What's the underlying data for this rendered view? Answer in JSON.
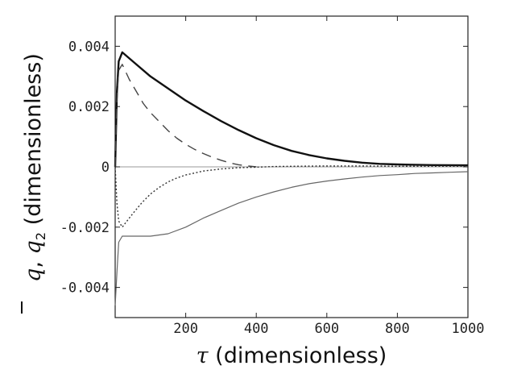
{
  "chart_data": {
    "type": "line",
    "xlabel": {
      "symbol": "τ",
      "text": " (dimensionless)"
    },
    "ylabel": {
      "sym1": "q",
      "sep": ",  ",
      "sym2": "q",
      "sub2": "2",
      "text": " (dimensionless)"
    },
    "xlim": [
      0,
      1000
    ],
    "ylim": [
      -0.005,
      0.005
    ],
    "x_ticks": [
      {
        "value": 200,
        "label": "200"
      },
      {
        "value": 400,
        "label": "400"
      },
      {
        "value": 600,
        "label": "600"
      },
      {
        "value": 800,
        "label": "800"
      },
      {
        "value": 1000,
        "label": "1000"
      }
    ],
    "y_ticks": [
      {
        "value": 0.004,
        "label": "0.004"
      },
      {
        "value": 0.002,
        "label": "0.002"
      },
      {
        "value": 0,
        "label": "0"
      },
      {
        "value": -0.002,
        "label": "-0.002"
      },
      {
        "value": -0.004,
        "label": "-0.004"
      }
    ],
    "grid": false,
    "zero_line": true,
    "series": [
      {
        "style": "solid-thick",
        "color": "#111111",
        "x": [
          0,
          5,
          10,
          20,
          50,
          100,
          150,
          200,
          250,
          300,
          350,
          400,
          450,
          500,
          550,
          600,
          650,
          700,
          750,
          800,
          900,
          1000
        ],
        "y": [
          0,
          0.0025,
          0.0035,
          0.0038,
          0.0035,
          0.003,
          0.0026,
          0.0022,
          0.00185,
          0.00152,
          0.00122,
          0.00095,
          0.00072,
          0.00053,
          0.00039,
          0.00028,
          0.0002,
          0.00014,
          0.0001,
          8e-05,
          6e-05,
          5e-05
        ]
      },
      {
        "style": "dashed",
        "color": "#444444",
        "x": [
          0,
          5,
          10,
          20,
          40,
          60,
          80,
          100,
          125,
          150,
          175,
          200,
          225,
          250,
          275,
          300,
          325,
          350,
          375,
          400
        ],
        "y": [
          0,
          0.0022,
          0.0032,
          0.0034,
          0.0029,
          0.0025,
          0.0021,
          0.0018,
          0.0015,
          0.0012,
          0.00095,
          0.00075,
          0.00058,
          0.00044,
          0.00032,
          0.00022,
          0.00013,
          7e-05,
          3e-05,
          0.0
        ]
      },
      {
        "style": "dotted",
        "color": "#333333",
        "x": [
          0,
          5,
          10,
          20,
          30,
          50,
          75,
          100,
          125,
          150,
          175,
          200,
          250,
          300,
          350,
          400,
          450,
          500,
          600,
          700,
          800,
          900,
          1000
        ],
        "y": [
          0,
          -0.0012,
          -0.0018,
          -0.002,
          -0.00185,
          -0.00155,
          -0.0012,
          -0.0009,
          -0.00068,
          -0.0005,
          -0.00037,
          -0.00027,
          -0.00014,
          -7e-05,
          -3e-05,
          -1e-05,
          1e-05,
          2e-05,
          3e-05,
          3e-05,
          2e-05,
          2e-05,
          2e-05
        ]
      },
      {
        "style": "solid-thin",
        "color": "#666666",
        "x": [
          0,
          5,
          10,
          20,
          50,
          100,
          150,
          200,
          250,
          300,
          350,
          400,
          450,
          500,
          550,
          600,
          650,
          700,
          750,
          800,
          850,
          900,
          950,
          1000
        ],
        "y": [
          -0.0046,
          -0.0035,
          -0.0025,
          -0.0023,
          -0.0023,
          -0.0023,
          -0.00222,
          -0.002,
          -0.0017,
          -0.00145,
          -0.0012,
          -0.001,
          -0.00083,
          -0.00068,
          -0.00056,
          -0.00047,
          -0.0004,
          -0.00034,
          -0.00029,
          -0.00026,
          -0.00022,
          -0.0002,
          -0.00018,
          -0.00016
        ]
      }
    ]
  }
}
